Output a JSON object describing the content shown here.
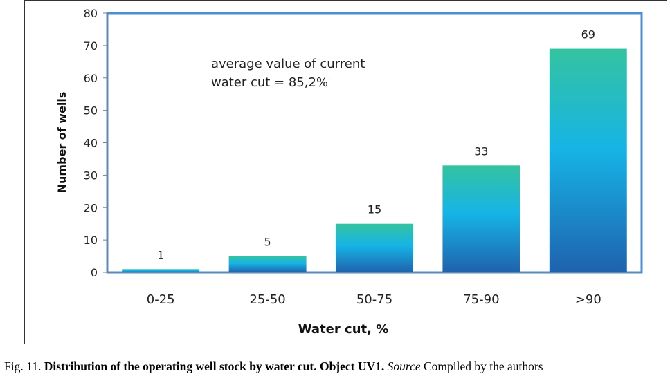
{
  "chart_data": {
    "type": "bar",
    "categories": [
      "0-25",
      "25-50",
      "50-75",
      "75-90",
      ">90"
    ],
    "values": [
      1,
      5,
      15,
      33,
      69
    ],
    "data_labels": [
      "1",
      "5",
      "15",
      "33",
      "69"
    ],
    "xlabel": "Water cut, %",
    "ylabel": "Number of wells",
    "ylim": [
      0,
      80
    ],
    "yticks": [
      "0",
      "10",
      "20",
      "30",
      "40",
      "50",
      "60",
      "70",
      "80"
    ],
    "grid": false,
    "annotation": {
      "line1": "average value of current",
      "line2": "water cut = 85,2%"
    }
  },
  "colors": {
    "bar_top": "#34c3a0",
    "bar_mid": "#16b4e6",
    "bar_bottom": "#1f62ad",
    "plot_border": "#4a8fd4"
  },
  "caption": {
    "prefix": "Fig. 11. ",
    "title": "Distribution of the operating well stock by water cut. Object UV1.",
    "source_label": "Source",
    "source_text": " Compiled by the authors"
  }
}
